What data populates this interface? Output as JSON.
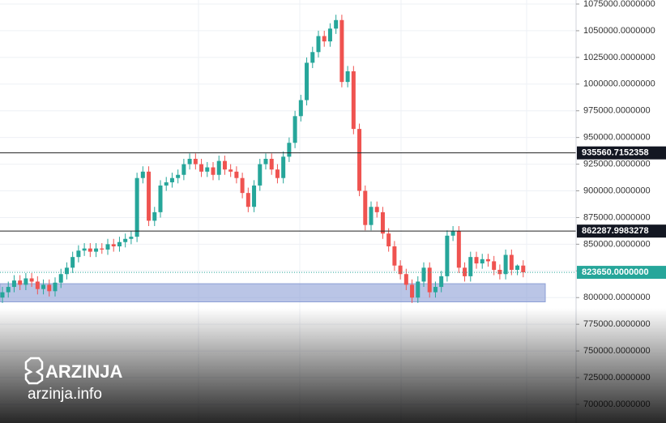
{
  "chart_data": {
    "type": "candlestick",
    "open": [
      800000,
      805000,
      810000,
      816000,
      812000,
      818000,
      815000,
      808000,
      812000,
      806000,
      814000,
      822000,
      828000,
      838000,
      844000,
      846000,
      843000,
      846000,
      845000,
      850000,
      848000,
      852000,
      855000,
      857000,
      912000,
      918000,
      872000,
      880000,
      905000,
      908000,
      912000,
      915000,
      925000,
      930000,
      925000,
      918000,
      922000,
      915000,
      928000,
      920000,
      918000,
      912000,
      898000,
      885000,
      905000,
      925000,
      930000,
      920000,
      912000,
      932000,
      945000,
      970000,
      985000,
      1020000,
      1030000,
      1045000,
      1040000,
      1052000,
      1060000,
      1002000,
      1012000,
      958000,
      900000,
      868000,
      885000,
      880000,
      860000,
      848000,
      830000,
      822000,
      812000,
      800000,
      815000,
      828000,
      805000,
      810000,
      820000,
      858000,
      862000,
      828000,
      820000,
      838000,
      832000,
      836000,
      834000,
      826000,
      822000,
      840000,
      826000,
      830000
    ],
    "high": [
      810000,
      815000,
      821000,
      821000,
      823000,
      823000,
      820000,
      817000,
      817000,
      819000,
      827000,
      833000,
      843000,
      849000,
      851000,
      851000,
      851000,
      851000,
      855000,
      855000,
      857000,
      860000,
      862000,
      917000,
      923000,
      923000,
      885000,
      910000,
      913000,
      917000,
      920000,
      930000,
      935000,
      935000,
      930000,
      927000,
      927000,
      933000,
      933000,
      925000,
      923000,
      917000,
      903000,
      910000,
      930000,
      935000,
      935000,
      925000,
      937000,
      950000,
      975000,
      990000,
      1025000,
      1035000,
      1050000,
      1050000,
      1057000,
      1065000,
      1065000,
      1017000,
      1017000,
      963000,
      905000,
      890000,
      890000,
      885000,
      865000,
      853000,
      835000,
      827000,
      817000,
      820000,
      833000,
      833000,
      815000,
      825000,
      863000,
      867000,
      867000,
      833000,
      843000,
      843000,
      841000,
      841000,
      839000,
      831000,
      845000,
      845000,
      831000,
      835000
    ],
    "low": [
      795000,
      800000,
      805000,
      807000,
      807000,
      810000,
      803000,
      803000,
      801000,
      801000,
      809000,
      817000,
      823000,
      833000,
      839000,
      838000,
      838000,
      841000,
      840000,
      843000,
      843000,
      847000,
      850000,
      852000,
      907000,
      867000,
      867000,
      875000,
      900000,
      903000,
      907000,
      910000,
      920000,
      920000,
      913000,
      913000,
      910000,
      910000,
      915000,
      913000,
      907000,
      893000,
      880000,
      880000,
      900000,
      920000,
      915000,
      907000,
      907000,
      927000,
      940000,
      965000,
      980000,
      1015000,
      1025000,
      1035000,
      1035000,
      1047000,
      997000,
      997000,
      953000,
      895000,
      863000,
      863000,
      875000,
      855000,
      843000,
      825000,
      817000,
      807000,
      795000,
      795000,
      810000,
      800000,
      800000,
      805000,
      815000,
      853000,
      823000,
      815000,
      815000,
      827000,
      827000,
      829000,
      821000,
      817000,
      817000,
      821000,
      821000,
      819000
    ],
    "close": [
      805000,
      810000,
      816000,
      812000,
      818000,
      815000,
      808000,
      812000,
      806000,
      814000,
      822000,
      828000,
      838000,
      844000,
      846000,
      843000,
      846000,
      845000,
      850000,
      848000,
      852000,
      855000,
      857000,
      912000,
      918000,
      872000,
      880000,
      905000,
      908000,
      912000,
      915000,
      925000,
      930000,
      925000,
      918000,
      922000,
      915000,
      928000,
      920000,
      918000,
      912000,
      898000,
      885000,
      905000,
      925000,
      930000,
      920000,
      912000,
      932000,
      945000,
      970000,
      985000,
      1020000,
      1030000,
      1045000,
      1040000,
      1052000,
      1060000,
      1002000,
      1012000,
      958000,
      900000,
      868000,
      885000,
      880000,
      860000,
      848000,
      830000,
      822000,
      812000,
      800000,
      815000,
      828000,
      805000,
      810000,
      820000,
      858000,
      862000,
      828000,
      820000,
      838000,
      832000,
      836000,
      834000,
      826000,
      822000,
      840000,
      826000,
      830000,
      823650
    ],
    "up_color": "#26a69a",
    "down_color": "#ef5350",
    "ylim": [
      682500,
      1078800
    ],
    "yticks": [
      {
        "value": 1075000,
        "label": "1075000.0000000"
      },
      {
        "value": 1050000,
        "label": "1050000.0000000"
      },
      {
        "value": 1025000,
        "label": "1025000.0000000"
      },
      {
        "value": 1000000,
        "label": "1000000.0000000"
      },
      {
        "value": 975000,
        "label": "975000.0000000"
      },
      {
        "value": 950000,
        "label": "950000.0000000"
      },
      {
        "value": 925000,
        "label": "925000.0000000"
      },
      {
        "value": 900000,
        "label": "900000.0000000"
      },
      {
        "value": 875000,
        "label": "875000.0000000"
      },
      {
        "value": 850000,
        "label": "850000.0000000"
      },
      {
        "value": 825000,
        "label": "825000.0000000"
      },
      {
        "value": 800000,
        "label": "800000.0000000"
      },
      {
        "value": 775000,
        "label": "775000.0000000"
      },
      {
        "value": 750000,
        "label": "750000.0000000"
      },
      {
        "value": 725000,
        "label": "725000.0000000"
      },
      {
        "value": 700000,
        "label": "700000.0000000"
      }
    ],
    "grid": true,
    "levels": [
      {
        "value": 935560.7152358,
        "label": "935560.7152358"
      },
      {
        "value": 862287.9983278,
        "label": "862287.9983278"
      }
    ],
    "last_price": {
      "value": 823650,
      "label": "823650.0000000",
      "color": "#26a69a"
    },
    "zone": {
      "low": 796000,
      "high": 813000,
      "color": "#8c9fd6"
    },
    "watermark": {
      "brand": "ARZINJA",
      "site": "arzinja.info"
    }
  }
}
